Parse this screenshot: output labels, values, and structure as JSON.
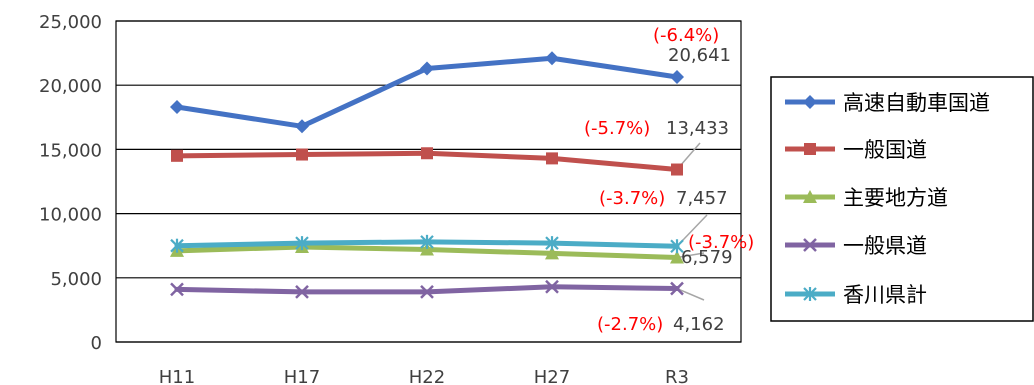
{
  "chart_data": {
    "type": "line",
    "categories": [
      "H11",
      "H17",
      "H22",
      "H27",
      "R3"
    ],
    "ylim": [
      0,
      25000
    ],
    "yticks": [
      0,
      5000,
      10000,
      15000,
      20000,
      25000
    ],
    "ytick_labels": [
      "0",
      "5,000",
      "10,000",
      "15,000",
      "20,000",
      "25,000"
    ],
    "grid": true,
    "legend_position": "right",
    "series": [
      {
        "name": "高速自動車国道",
        "color": "#4472c4",
        "marker": "diamond",
        "values": [
          18300,
          16800,
          21300,
          22100,
          20641
        ],
        "end_label": "20,641",
        "change_label": "(-6.4%)"
      },
      {
        "name": "一般国道",
        "color": "#c0504d",
        "marker": "square",
        "values": [
          14500,
          14600,
          14700,
          14300,
          13433
        ],
        "end_label": "13,433",
        "change_label": "(-5.7%)"
      },
      {
        "name": "主要地方道",
        "color": "#9bbb59",
        "marker": "triangle",
        "values": [
          7100,
          7400,
          7200,
          6900,
          6579
        ],
        "end_label": "6,579",
        "change_label": "(-3.7%)"
      },
      {
        "name": "一般県道",
        "color": "#8064a2",
        "marker": "x",
        "values": [
          4100,
          3900,
          3900,
          4300,
          4162
        ],
        "end_label": "4,162",
        "change_label": "(-2.7%)"
      },
      {
        "name": "香川県計",
        "color": "#4bacc6",
        "marker": "star",
        "values": [
          7500,
          7700,
          7800,
          7700,
          7457
        ],
        "end_label": "7,457",
        "change_label": "(-3.7%)"
      }
    ]
  }
}
